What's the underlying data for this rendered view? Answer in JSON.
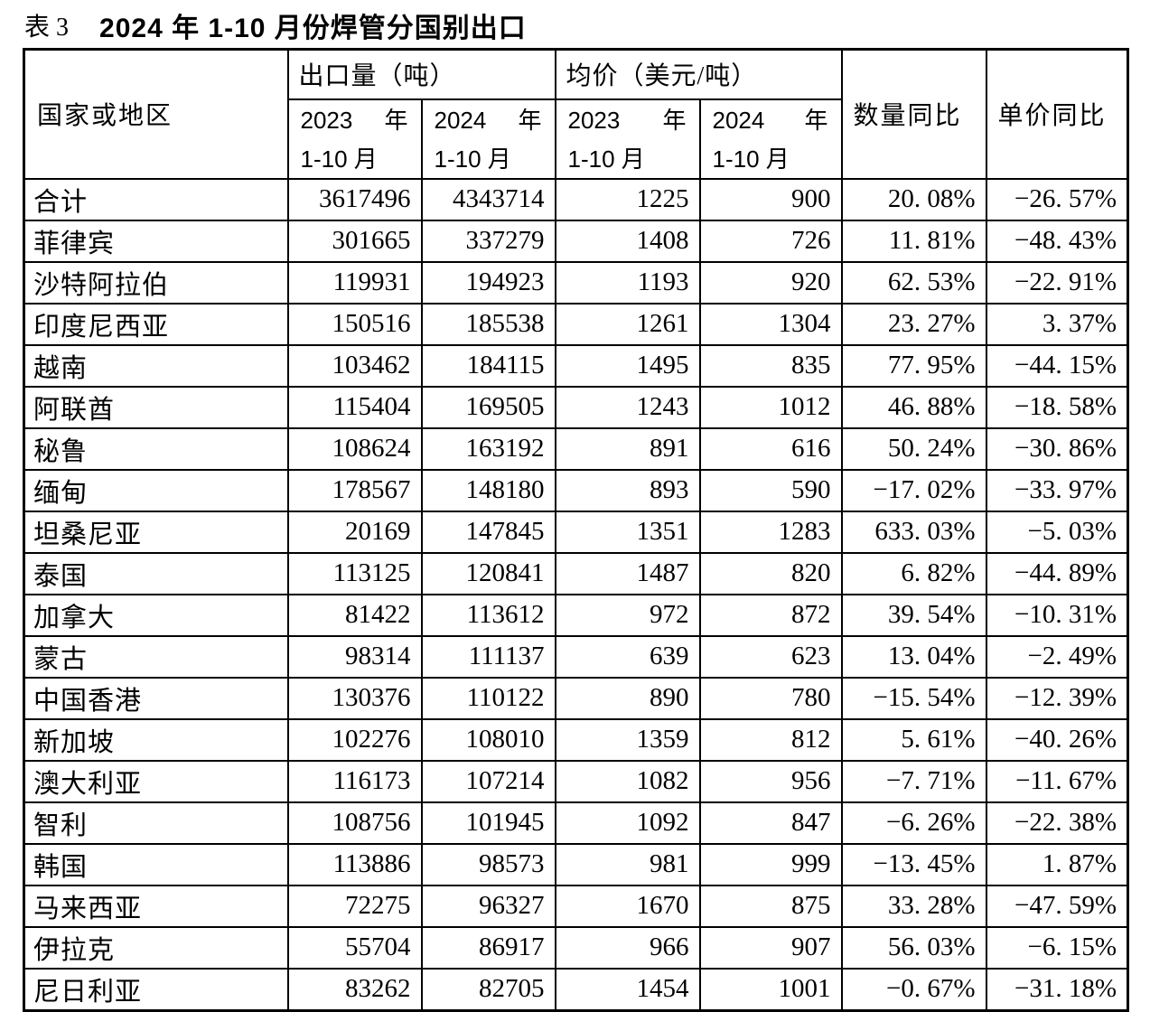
{
  "title": {
    "prefix": "表 3",
    "main": "2024 年 1-10 月份焊管分国别出口"
  },
  "table": {
    "header": {
      "country": "国家或地区",
      "volume_group": "出口量（吨）",
      "price_group": "均价（美元/吨）",
      "col_2023": {
        "year": "2023",
        "year_unit": "年",
        "period": "1-10 月"
      },
      "col_2024": {
        "year": "2024",
        "year_unit": "年",
        "period": "1-10 月"
      },
      "qty_yoy": "数量同比",
      "price_yoy": "单价同比"
    },
    "rows": [
      {
        "country": "合计",
        "vol_2023": "3617496",
        "vol_2024": "4343714",
        "price_2023": "1225",
        "price_2024": "900",
        "qty_yoy": "20. 08%",
        "price_yoy": "−26. 57%"
      },
      {
        "country": "菲律宾",
        "vol_2023": "301665",
        "vol_2024": "337279",
        "price_2023": "1408",
        "price_2024": "726",
        "qty_yoy": "11. 81%",
        "price_yoy": "−48. 43%"
      },
      {
        "country": "沙特阿拉伯",
        "vol_2023": "119931",
        "vol_2024": "194923",
        "price_2023": "1193",
        "price_2024": "920",
        "qty_yoy": "62. 53%",
        "price_yoy": "−22. 91%"
      },
      {
        "country": "印度尼西亚",
        "vol_2023": "150516",
        "vol_2024": "185538",
        "price_2023": "1261",
        "price_2024": "1304",
        "qty_yoy": "23. 27%",
        "price_yoy": "3. 37%"
      },
      {
        "country": "越南",
        "vol_2023": "103462",
        "vol_2024": "184115",
        "price_2023": "1495",
        "price_2024": "835",
        "qty_yoy": "77. 95%",
        "price_yoy": "−44. 15%"
      },
      {
        "country": "阿联酋",
        "vol_2023": "115404",
        "vol_2024": "169505",
        "price_2023": "1243",
        "price_2024": "1012",
        "qty_yoy": "46. 88%",
        "price_yoy": "−18. 58%"
      },
      {
        "country": "秘鲁",
        "vol_2023": "108624",
        "vol_2024": "163192",
        "price_2023": "891",
        "price_2024": "616",
        "qty_yoy": "50. 24%",
        "price_yoy": "−30. 86%"
      },
      {
        "country": "缅甸",
        "vol_2023": "178567",
        "vol_2024": "148180",
        "price_2023": "893",
        "price_2024": "590",
        "qty_yoy": "−17. 02%",
        "price_yoy": "−33. 97%"
      },
      {
        "country": "坦桑尼亚",
        "vol_2023": "20169",
        "vol_2024": "147845",
        "price_2023": "1351",
        "price_2024": "1283",
        "qty_yoy": "633. 03%",
        "price_yoy": "−5. 03%"
      },
      {
        "country": "泰国",
        "vol_2023": "113125",
        "vol_2024": "120841",
        "price_2023": "1487",
        "price_2024": "820",
        "qty_yoy": "6. 82%",
        "price_yoy": "−44. 89%"
      },
      {
        "country": "加拿大",
        "vol_2023": "81422",
        "vol_2024": "113612",
        "price_2023": "972",
        "price_2024": "872",
        "qty_yoy": "39. 54%",
        "price_yoy": "−10. 31%"
      },
      {
        "country": "蒙古",
        "vol_2023": "98314",
        "vol_2024": "111137",
        "price_2023": "639",
        "price_2024": "623",
        "qty_yoy": "13. 04%",
        "price_yoy": "−2. 49%"
      },
      {
        "country": "中国香港",
        "vol_2023": "130376",
        "vol_2024": "110122",
        "price_2023": "890",
        "price_2024": "780",
        "qty_yoy": "−15. 54%",
        "price_yoy": "−12. 39%"
      },
      {
        "country": "新加坡",
        "vol_2023": "102276",
        "vol_2024": "108010",
        "price_2023": "1359",
        "price_2024": "812",
        "qty_yoy": "5. 61%",
        "price_yoy": "−40. 26%"
      },
      {
        "country": "澳大利亚",
        "vol_2023": "116173",
        "vol_2024": "107214",
        "price_2023": "1082",
        "price_2024": "956",
        "qty_yoy": "−7. 71%",
        "price_yoy": "−11. 67%"
      },
      {
        "country": "智利",
        "vol_2023": "108756",
        "vol_2024": "101945",
        "price_2023": "1092",
        "price_2024": "847",
        "qty_yoy": "−6. 26%",
        "price_yoy": "−22. 38%"
      },
      {
        "country": "韩国",
        "vol_2023": "113886",
        "vol_2024": "98573",
        "price_2023": "981",
        "price_2024": "999",
        "qty_yoy": "−13. 45%",
        "price_yoy": "1. 87%"
      },
      {
        "country": "马来西亚",
        "vol_2023": "72275",
        "vol_2024": "96327",
        "price_2023": "1670",
        "price_2024": "875",
        "qty_yoy": "33. 28%",
        "price_yoy": "−47. 59%"
      },
      {
        "country": "伊拉克",
        "vol_2023": "55704",
        "vol_2024": "86917",
        "price_2023": "966",
        "price_2024": "907",
        "qty_yoy": "56. 03%",
        "price_yoy": "−6. 15%"
      },
      {
        "country": "尼日利亚",
        "vol_2023": "83262",
        "vol_2024": "82705",
        "price_2023": "1454",
        "price_2024": "1001",
        "qty_yoy": "−0. 67%",
        "price_yoy": "−31. 18%"
      }
    ]
  }
}
